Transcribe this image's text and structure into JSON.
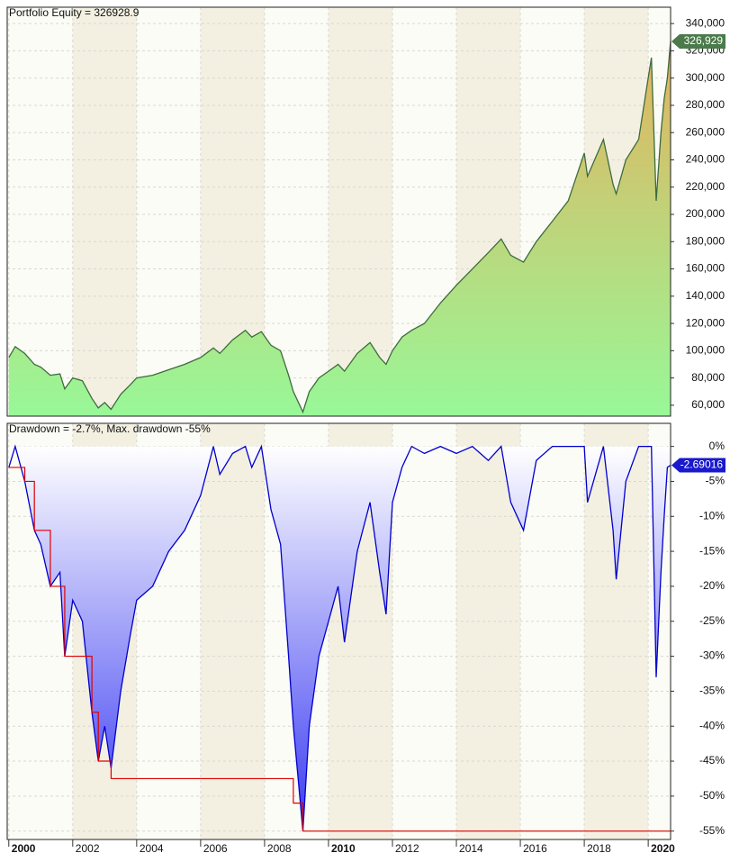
{
  "chart_data": [
    {
      "type": "area",
      "title": "Portfolio Equity = 326928.9",
      "x": [
        2000.0,
        2000.2,
        2000.5,
        2000.8,
        2001.0,
        2001.3,
        2001.6,
        2001.75,
        2002.0,
        2002.3,
        2002.6,
        2002.8,
        2003.0,
        2003.2,
        2003.5,
        2003.8,
        2004.0,
        2004.5,
        2005.0,
        2005.5,
        2006.0,
        2006.4,
        2006.6,
        2007.0,
        2007.4,
        2007.6,
        2007.9,
        2008.2,
        2008.5,
        2008.75,
        2008.9,
        2009.1,
        2009.2,
        2009.4,
        2009.7,
        2010.0,
        2010.3,
        2010.5,
        2010.9,
        2011.3,
        2011.6,
        2011.8,
        2012.0,
        2012.3,
        2012.6,
        2013.0,
        2013.5,
        2014.0,
        2014.5,
        2015.0,
        2015.4,
        2015.7,
        2016.1,
        2016.5,
        2017.0,
        2017.5,
        2018.0,
        2018.1,
        2018.6,
        2018.9,
        2019.0,
        2019.3,
        2019.7,
        2020.0,
        2020.1,
        2020.25,
        2020.4,
        2020.5,
        2020.6,
        2020.7
      ],
      "values": [
        95000,
        103000,
        98000,
        90000,
        88000,
        82000,
        83000,
        72000,
        80000,
        78000,
        65000,
        58000,
        62000,
        57000,
        68000,
        75000,
        80000,
        82000,
        86000,
        90000,
        95000,
        102000,
        98000,
        108000,
        115000,
        110000,
        114000,
        104000,
        100000,
        82000,
        70000,
        60000,
        55000,
        70000,
        80000,
        85000,
        90000,
        85000,
        98000,
        106000,
        95000,
        90000,
        100000,
        110000,
        115000,
        120000,
        135000,
        148000,
        160000,
        172000,
        182000,
        170000,
        165000,
        180000,
        195000,
        210000,
        245000,
        228000,
        255000,
        222000,
        215000,
        240000,
        255000,
        300000,
        315000,
        210000,
        260000,
        285000,
        300000,
        326929
      ],
      "color": "#3d6b3d",
      "fill": [
        "#e3b25e",
        "#98f898"
      ],
      "value_tag": {
        "value": 326929,
        "label": "326,929"
      },
      "tag_color": "#4b7a4b",
      "xlim": [
        1999.95,
        2020.7
      ],
      "xticks": [
        2000,
        2002,
        2004,
        2006,
        2008,
        2010,
        2012,
        2014,
        2016,
        2018,
        2020
      ],
      "ylim": [
        52000,
        352000
      ],
      "yticks": [
        {
          "value": 60000,
          "label": "60,000"
        },
        {
          "value": 80000,
          "label": "80,000"
        },
        {
          "value": 100000,
          "label": "100,000"
        },
        {
          "value": 120000,
          "label": "120,000"
        },
        {
          "value": 140000,
          "label": "140,000"
        },
        {
          "value": 160000,
          "label": "160,000"
        },
        {
          "value": 180000,
          "label": "180,000"
        },
        {
          "value": 200000,
          "label": "200,000"
        },
        {
          "value": 220000,
          "label": "220,000"
        },
        {
          "value": 240000,
          "label": "240,000"
        },
        {
          "value": 260000,
          "label": "260,000"
        },
        {
          "value": 280000,
          "label": "280,000"
        },
        {
          "value": 300000,
          "label": "300,000"
        },
        {
          "value": 320000,
          "label": "320,000"
        },
        {
          "value": 340000,
          "label": "340,000"
        }
      ],
      "grid": true
    },
    {
      "type": "drawdown",
      "title": "Drawdown = -2.7%, Max. drawdown -55%",
      "x": [
        2000.0,
        2000.2,
        2000.5,
        2000.8,
        2001.0,
        2001.3,
        2001.6,
        2001.75,
        2002.0,
        2002.3,
        2002.6,
        2002.8,
        2003.0,
        2003.2,
        2003.5,
        2003.8,
        2004.0,
        2004.5,
        2005.0,
        2005.5,
        2006.0,
        2006.4,
        2006.6,
        2007.0,
        2007.4,
        2007.6,
        2007.9,
        2008.2,
        2008.5,
        2008.75,
        2008.9,
        2009.1,
        2009.2,
        2009.4,
        2009.7,
        2010.0,
        2010.3,
        2010.5,
        2010.9,
        2011.3,
        2011.6,
        2011.8,
        2012.0,
        2012.3,
        2012.6,
        2013.0,
        2013.5,
        2014.0,
        2014.5,
        2015.0,
        2015.4,
        2015.7,
        2016.1,
        2016.5,
        2017.0,
        2017.5,
        2018.0,
        2018.1,
        2018.6,
        2018.9,
        2019.0,
        2019.3,
        2019.7,
        2020.0,
        2020.1,
        2020.25,
        2020.4,
        2020.5,
        2020.6,
        2020.7
      ],
      "values": [
        -3,
        0,
        -5,
        -12,
        -14,
        -20,
        -18,
        -30,
        -22,
        -25,
        -38,
        -45,
        -40,
        -46,
        -35,
        -27,
        -22,
        -20,
        -15,
        -12,
        -7,
        0,
        -4,
        -1,
        0,
        -3,
        0,
        -9,
        -14,
        -30,
        -40,
        -50,
        -55,
        -40,
        -30,
        -25,
        -20,
        -28,
        -15,
        -8,
        -18,
        -24,
        -8,
        -3,
        0,
        -1,
        0,
        -1,
        0,
        -2,
        0,
        -8,
        -12,
        -2,
        0,
        0,
        0,
        -8,
        0,
        -12,
        -19,
        -5,
        0,
        0,
        0,
        -33,
        -18,
        -10,
        -3,
        -2.69016
      ],
      "color": "#0000cc",
      "fill": [
        "#ffffff",
        "#3a3af2"
      ],
      "max_drawdown": {
        "x": [
          2000.0,
          2000.5,
          2000.8,
          2001.3,
          2001.75,
          2002.6,
          2002.8,
          2003.2,
          2008.9,
          2009.2,
          2020.7
        ],
        "values": [
          -3,
          -5,
          -12,
          -20,
          -30,
          -38,
          -45,
          -47.5,
          -51,
          -55,
          -55
        ],
        "color": "#dd0000"
      },
      "value_tag": {
        "value": -2.69016,
        "label": "-2.69016"
      },
      "tag_color": "#1a1acc",
      "xlim": [
        1999.95,
        2020.7
      ],
      "xticks": [
        2000,
        2002,
        2004,
        2006,
        2008,
        2010,
        2012,
        2014,
        2016,
        2018,
        2020
      ],
      "ylim": [
        -56.2,
        3.3
      ],
      "yticks": [
        {
          "value": 0,
          "label": "0%"
        },
        {
          "value": -5,
          "label": "-5%"
        },
        {
          "value": -10,
          "label": "-10%"
        },
        {
          "value": -15,
          "label": "-15%"
        },
        {
          "value": -20,
          "label": "-20%"
        },
        {
          "value": -25,
          "label": "-25%"
        },
        {
          "value": -30,
          "label": "-30%"
        },
        {
          "value": -35,
          "label": "-35%"
        },
        {
          "value": -40,
          "label": "-40%"
        },
        {
          "value": -45,
          "label": "-45%"
        },
        {
          "value": -50,
          "label": "-50%"
        },
        {
          "value": -55,
          "label": "-55%"
        }
      ],
      "grid": true
    }
  ]
}
